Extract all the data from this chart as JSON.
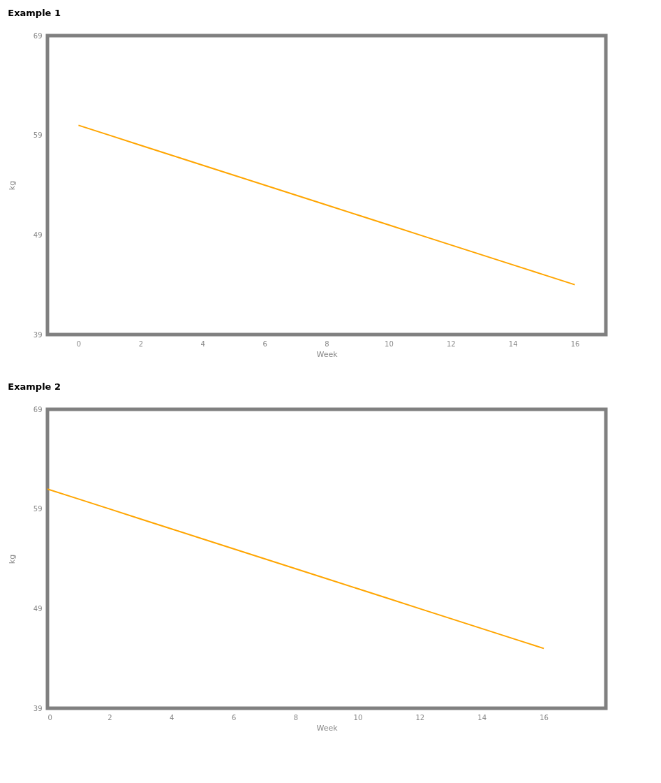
{
  "chart_data": [
    {
      "type": "line",
      "title": "Example 1",
      "xlabel": "Week",
      "ylabel": "kg",
      "x": [
        0,
        1,
        2,
        3,
        4,
        5,
        6,
        7,
        8,
        9,
        10,
        11,
        12,
        13,
        14,
        15,
        16
      ],
      "series": [
        {
          "color": "#ffa500",
          "values": [
            60,
            59,
            58,
            57,
            56,
            55,
            54,
            53,
            52,
            51,
            50,
            49,
            48,
            47,
            46,
            45,
            44
          ]
        }
      ],
      "xlim": [
        -1,
        17
      ],
      "xticks": [
        0,
        2,
        4,
        6,
        8,
        10,
        12,
        14,
        16
      ],
      "ylim": [
        39,
        69
      ],
      "yticks": [
        39,
        49,
        59,
        69
      ],
      "grid": false,
      "marker": "none",
      "line_style": "solid"
    },
    {
      "type": "line",
      "title": "Example 2",
      "xlabel": "Week",
      "ylabel": "kg",
      "x": [
        0,
        1,
        2,
        3,
        4,
        5,
        6,
        7,
        8,
        9,
        10,
        11,
        12,
        13,
        14,
        15,
        16
      ],
      "series": [
        {
          "color": "#ffa500",
          "values": [
            61,
            60,
            59,
            58,
            57,
            56,
            55,
            54,
            53,
            52,
            51,
            50,
            49,
            48,
            47,
            46,
            45
          ]
        }
      ],
      "xlim": [
        0,
        18
      ],
      "xticks": [
        0,
        2,
        4,
        6,
        8,
        10,
        12,
        14,
        16
      ],
      "ylim": [
        39,
        69
      ],
      "yticks": [
        39,
        49,
        59,
        69
      ],
      "grid": false,
      "marker": "none",
      "line_style": "solid"
    }
  ]
}
